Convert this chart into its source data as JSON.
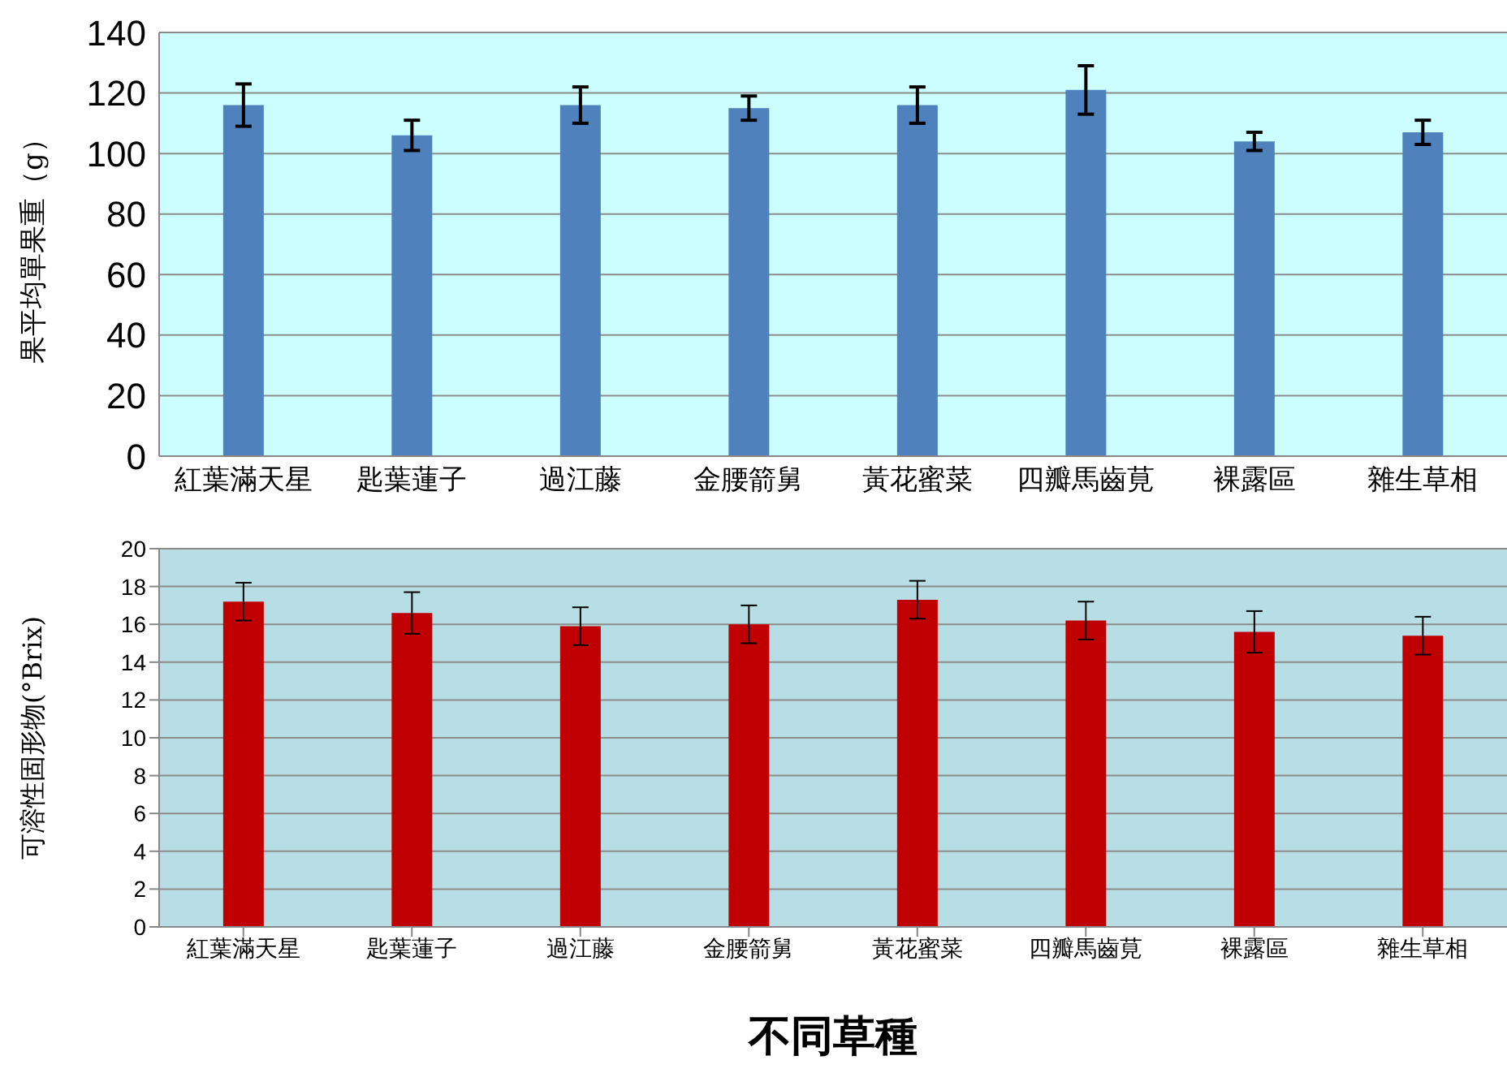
{
  "chart_data": [
    {
      "type": "bar",
      "ylabel": "果平均單果重（g）",
      "categories": [
        "紅葉滿天星",
        "匙葉蓮子",
        "過江藤",
        "金腰箭舅",
        "黃花蜜菜",
        "四瓣馬齒莧",
        "裸露區",
        "雜生草相"
      ],
      "values": [
        116,
        106,
        116,
        115,
        116,
        121,
        104,
        107
      ],
      "errors": [
        7,
        5,
        6,
        4,
        6,
        8,
        3,
        4
      ],
      "color": "#4f81bd",
      "ylim": [
        0,
        140
      ],
      "yticks": [
        0,
        20,
        40,
        60,
        80,
        100,
        120,
        140
      ],
      "grid": "y"
    },
    {
      "type": "bar",
      "ylabel": "可溶性固形物(°Brix)",
      "xlabel": "不同草種",
      "categories": [
        "紅葉滿天星",
        "匙葉蓮子",
        "過江藤",
        "金腰箭舅",
        "黃花蜜菜",
        "四瓣馬齒莧",
        "裸露區",
        "雜生草相"
      ],
      "values": [
        17.2,
        16.6,
        15.9,
        16.0,
        17.3,
        16.2,
        15.6,
        15.4
      ],
      "errors": [
        1,
        1.1,
        1,
        1,
        1,
        1,
        1.1,
        1
      ],
      "color": "#c00000",
      "ylim": [
        0,
        20
      ],
      "yticks": [
        0,
        2,
        4,
        6,
        8,
        10,
        12,
        14,
        16,
        18,
        20
      ],
      "grid": "y"
    }
  ]
}
